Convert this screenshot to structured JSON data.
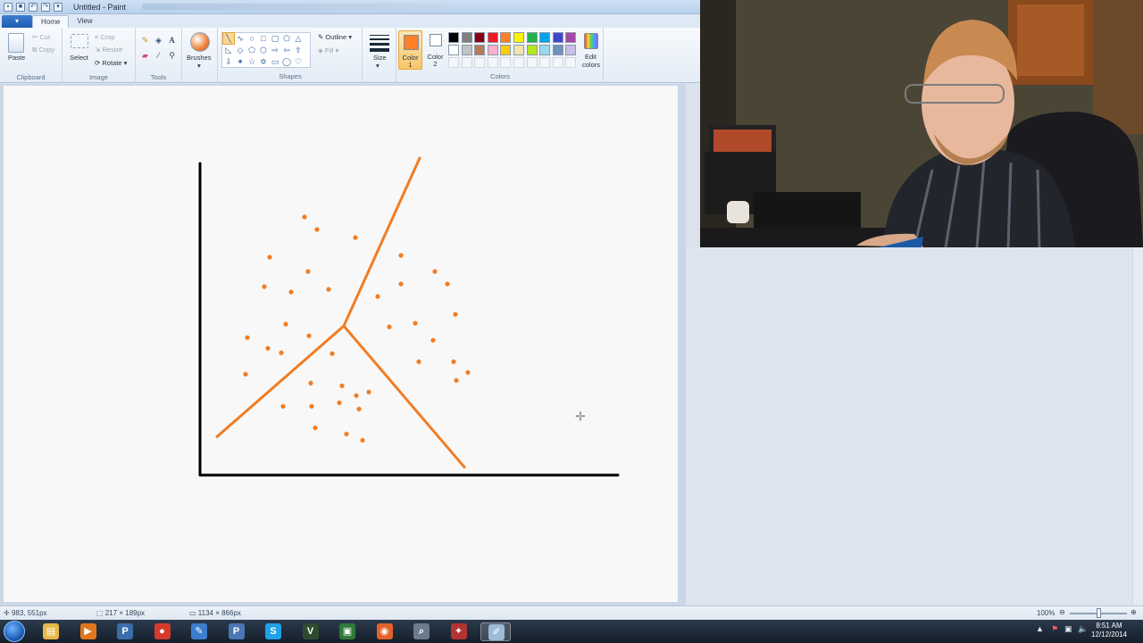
{
  "window": {
    "title": "Untitled - Paint",
    "quick_access": [
      "save-icon",
      "undo-icon",
      "redo-icon",
      "dropdown-icon"
    ]
  },
  "tabs": {
    "file": "▾",
    "home": "Home",
    "view": "View"
  },
  "ribbon": {
    "clipboard": {
      "label": "Clipboard",
      "paste": "Paste",
      "cut": "Cut",
      "copy": "Copy"
    },
    "image": {
      "label": "Image",
      "select": "Select",
      "crop": "Crop",
      "resize": "Resize",
      "rotate": "Rotate"
    },
    "tools": {
      "label": "Tools"
    },
    "brushes": {
      "label": "Brushes"
    },
    "shapes": {
      "label": "Shapes",
      "outline": "Outline",
      "fill": "Fill"
    },
    "size": {
      "label": "Size"
    },
    "colors": {
      "label": "Colors",
      "color1_line1": "Color",
      "color1_line2": "1",
      "color2_line1": "Color",
      "color2_line2": "2",
      "edit_line1": "Edit",
      "edit_line2": "colors",
      "color1_value": "#ff7f27",
      "color2_value": "#ffffff",
      "palette_row1": [
        "#000000",
        "#7f7f7f",
        "#880015",
        "#ed1c24",
        "#ff7f27",
        "#fff200",
        "#22b14c",
        "#00a2e8",
        "#3f48cc",
        "#a349a4"
      ],
      "palette_row2": [
        "#ffffff",
        "#c3c3c3",
        "#b97a57",
        "#ffaec9",
        "#ffc90e",
        "#efe4b0",
        "#b5e61d",
        "#99d9ea",
        "#7092be",
        "#c8bfe7"
      ]
    }
  },
  "drawing": {
    "stroke_orange": "#f07d24",
    "stroke_black": "#000000"
  },
  "status": {
    "cursor_pos": "983, 551px",
    "selection_size": "217 × 189px",
    "canvas_size": "1134 × 866px",
    "zoom": "100%"
  },
  "taskbar": {
    "time": "8:51 AM",
    "date": "12/12/2014",
    "apps": [
      "explorer-icon",
      "media-player-icon",
      "python-icon",
      "chrome-icon",
      "text-editor-icon",
      "python-idle-icon",
      "skype-icon",
      "vim-icon",
      "terminal-icon",
      "firefox-icon",
      "search-app-icon",
      "game-icon",
      "paint-icon"
    ]
  }
}
